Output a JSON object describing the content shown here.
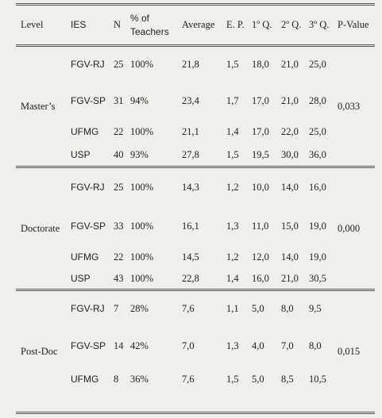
{
  "table": {
    "header": [
      "Level",
      "IES",
      "N",
      "% of Teachers",
      "Average",
      "E. P.",
      "1º Q.",
      "2º Q.",
      "3º Q.",
      "P-Value"
    ],
    "groups": [
      {
        "level": "Master’s",
        "p_value": "0,033",
        "rows": [
          [
            "FGV-RJ",
            "25",
            "100%",
            "21,8",
            "1,5",
            "18,0",
            "21,0",
            "25,0"
          ],
          [
            "FGV-SP",
            "31",
            "94%",
            "23,4",
            "1,7",
            "17,0",
            "21,0",
            "28,0"
          ],
          [
            "UFMG",
            "22",
            "100%",
            "21,1",
            "1,4",
            "17,0",
            "22,0",
            "25,0"
          ],
          [
            "USP",
            "40",
            "93%",
            "27,8",
            "1,5",
            "19,5",
            "30,0",
            "36,0"
          ]
        ]
      },
      {
        "level": "Doctorate",
        "p_value": "0,000",
        "rows": [
          [
            "FGV-RJ",
            "25",
            "100%",
            "14,3",
            "1,2",
            "10,0",
            "14,0",
            "16,0"
          ],
          [
            "FGV-SP",
            "33",
            "100%",
            "16,1",
            "1,3",
            "11,0",
            "15,0",
            "19,0"
          ],
          [
            "UFMG",
            "22",
            "100%",
            "14,5",
            "1,2",
            "12,0",
            "14,0",
            "19,0"
          ],
          [
            "USP",
            "43",
            "100%",
            "22,8",
            "1,4",
            "16,0",
            "21,0",
            "30,5"
          ]
        ]
      },
      {
        "level": "Post-Doc",
        "p_value": "0,015",
        "rows": [
          [
            "FGV-RJ",
            "7",
            "28%",
            "7,6",
            "1,1",
            "5,0",
            "8,0",
            "9,5"
          ],
          [
            "FGV-SP",
            "14",
            "42%",
            "7,0",
            "1,3",
            "4,0",
            "7,0",
            "8,0"
          ],
          [
            "UFMG",
            "8",
            "36%",
            "7,6",
            "1,5",
            "5,0",
            "8,5",
            "10,5"
          ]
        ]
      }
    ]
  }
}
